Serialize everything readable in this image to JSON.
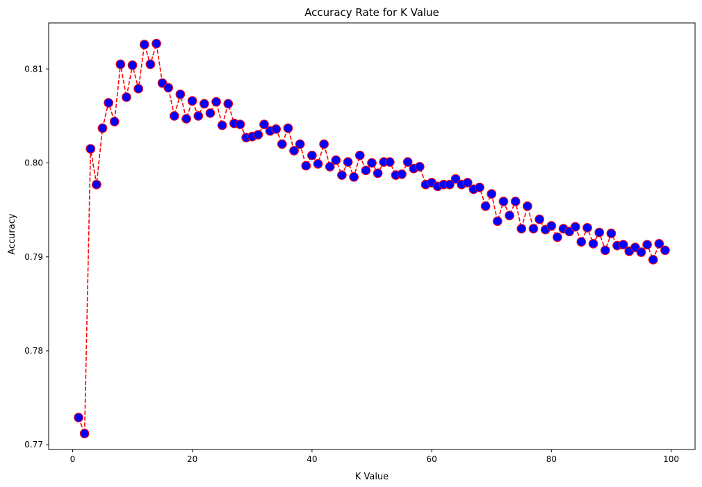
{
  "chart_data": {
    "type": "line",
    "title": "Accuracy Rate for K Value",
    "xlabel": "K Value",
    "ylabel": "Accuracy",
    "xlim": [
      -4.0,
      104.0
    ],
    "ylim": [
      0.7695,
      0.8149
    ],
    "xticks": [
      0,
      20,
      40,
      60,
      80,
      100
    ],
    "xtick_labels": [
      "0",
      "20",
      "40",
      "60",
      "80",
      "100"
    ],
    "yticks": [
      0.77,
      0.78,
      0.79,
      0.8,
      0.81
    ],
    "ytick_labels": [
      "0.77",
      "0.78",
      "0.79",
      "0.80",
      "0.81"
    ],
    "grid": false,
    "style": {
      "line_color": "#ff0000",
      "line_style": "dashed",
      "marker": "circle",
      "marker_face_color": "#0000ff",
      "marker_edge_color": "#ff0000"
    },
    "x": [
      1,
      2,
      3,
      4,
      5,
      6,
      7,
      8,
      9,
      10,
      11,
      12,
      13,
      14,
      15,
      16,
      17,
      18,
      19,
      20,
      21,
      22,
      23,
      24,
      25,
      26,
      27,
      28,
      29,
      30,
      31,
      32,
      33,
      34,
      35,
      36,
      37,
      38,
      39,
      40,
      41,
      42,
      43,
      44,
      45,
      46,
      47,
      48,
      49,
      50,
      51,
      52,
      53,
      54,
      55,
      56,
      57,
      58,
      59,
      60,
      61,
      62,
      63,
      64,
      65,
      66,
      67,
      68,
      69,
      70,
      71,
      72,
      73,
      74,
      75,
      76,
      77,
      78,
      79,
      80,
      81,
      82,
      83,
      84,
      85,
      86,
      87,
      88,
      89,
      90,
      91,
      92,
      93,
      94,
      95,
      96,
      97,
      98,
      99
    ],
    "values": [
      0.7729,
      0.7712,
      0.8015,
      0.7977,
      0.8037,
      0.8064,
      0.8044,
      0.8105,
      0.807,
      0.8104,
      0.8079,
      0.8126,
      0.8105,
      0.8127,
      0.8085,
      0.808,
      0.805,
      0.8073,
      0.8047,
      0.8066,
      0.805,
      0.8063,
      0.8053,
      0.8065,
      0.804,
      0.8063,
      0.8042,
      0.8041,
      0.8027,
      0.8028,
      0.803,
      0.8041,
      0.8034,
      0.8036,
      0.802,
      0.8037,
      0.8013,
      0.802,
      0.7997,
      0.8008,
      0.7999,
      0.802,
      0.7996,
      0.8003,
      0.7987,
      0.8001,
      0.7985,
      0.8008,
      0.7992,
      0.8,
      0.7989,
      0.8001,
      0.8001,
      0.7987,
      0.7988,
      0.8001,
      0.7994,
      0.7996,
      0.7977,
      0.7979,
      0.7975,
      0.7977,
      0.7977,
      0.7983,
      0.7977,
      0.7979,
      0.7972,
      0.7974,
      0.7954,
      0.7967,
      0.7938,
      0.7959,
      0.7944,
      0.7959,
      0.793,
      0.7954,
      0.793,
      0.794,
      0.7929,
      0.7933,
      0.7921,
      0.793,
      0.7927,
      0.7932,
      0.7916,
      0.7931,
      0.7914,
      0.7926,
      0.7907,
      0.7925,
      0.7912,
      0.7913,
      0.7906,
      0.791,
      0.7905,
      0.7913,
      0.7897,
      0.7914,
      0.7907
    ]
  }
}
